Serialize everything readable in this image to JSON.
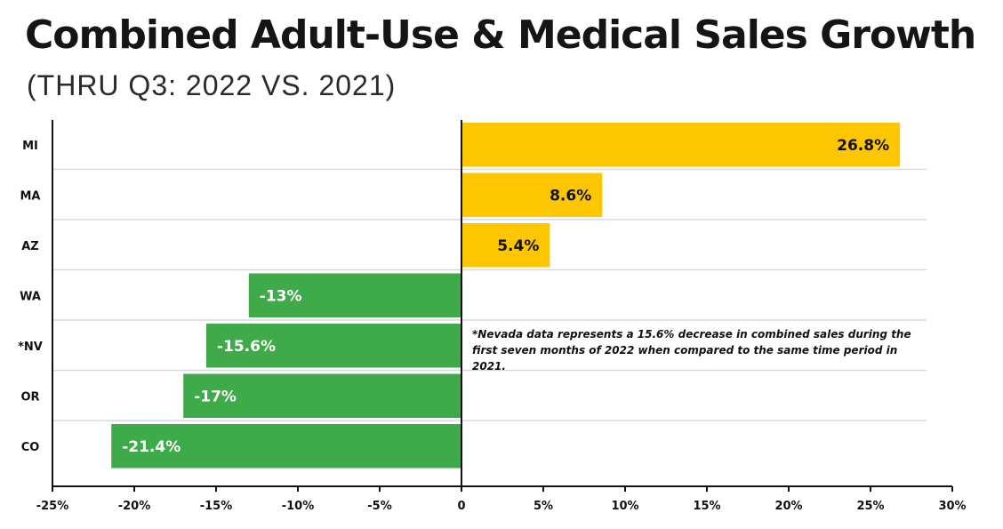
{
  "title": "Combined Adult-Use & Medical Sales Growth",
  "subtitle": "(THRU Q3: 2022 VS. 2021)",
  "note": "*Nevada data represents a 15.6% decrease in combined sales during the first seven months of 2022 when compared to the same time period in 2021.",
  "colors": {
    "positive": "#fcc700",
    "negative": "#3faa4a",
    "positive_label": "#111111",
    "negative_label": "#ffffff",
    "gridline": "#d9d9d9",
    "axis": "#111111"
  },
  "chart_data": {
    "type": "bar",
    "orientation": "horizontal",
    "title": "Combined Adult-Use & Medical Sales Growth",
    "subtitle": "(THRU Q3: 2022 VS. 2021)",
    "categories": [
      "MI",
      "MA",
      "AZ",
      "WA",
      "*NV",
      "OR",
      "CO"
    ],
    "values": [
      26.8,
      8.6,
      5.4,
      -13,
      -15.6,
      -17,
      -21.4
    ],
    "value_labels": [
      "26.8%",
      "8.6%",
      "5.4%",
      "-13%",
      "-15.6%",
      "-17%",
      "-21.4%"
    ],
    "xlim": [
      -25,
      30
    ],
    "xticks": [
      -25,
      -20,
      -15,
      -10,
      -5,
      0,
      5,
      10,
      15,
      20,
      25,
      30
    ],
    "xtick_labels": [
      "-25%",
      "-20%",
      "-15%",
      "-10%",
      "-5%",
      "0",
      "5%",
      "10%",
      "15%",
      "20%",
      "25%",
      "30%"
    ],
    "grid": "horizontal separators between categories",
    "legend": "none"
  }
}
